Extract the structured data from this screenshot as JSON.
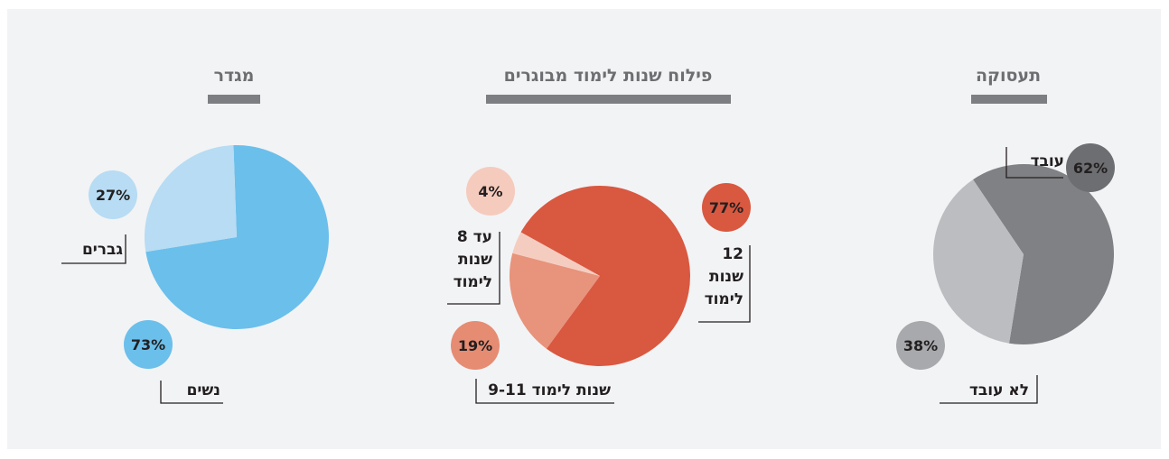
{
  "chart_data": [
    {
      "type": "pie",
      "title": "תעסוקה",
      "slices": [
        {
          "label": "עובד",
          "value": 62,
          "value_label": "62%",
          "color": "#808184",
          "badge_color": "#6d6e71"
        },
        {
          "label": "לא עובד",
          "value": 38,
          "value_label": "38%",
          "color": "#bcbdc0",
          "badge_color": "#a7a9ac"
        }
      ]
    },
    {
      "type": "pie",
      "title": "פילוח שנות לימוד מבוגרים",
      "slices": [
        {
          "label": "12 שנות לימוד",
          "label_lines": [
            "12",
            "שנות",
            "לימוד"
          ],
          "value": 77,
          "value_label": "77%",
          "color": "#d95840",
          "badge_color": "#d95840"
        },
        {
          "label": "9-11 שנות לימוד",
          "value": 19,
          "value_label": "19%",
          "color": "#e8937b",
          "badge_color": "#e58c73"
        },
        {
          "label": "עד 8 שנות לימוד",
          "label_lines": [
            "עד 8",
            "שנות",
            "לימוד"
          ],
          "value": 4,
          "value_label": "4%",
          "color": "#f5cdc0",
          "badge_color": "#f5cbbd"
        }
      ]
    },
    {
      "type": "pie",
      "title": "מגדר",
      "slices": [
        {
          "label": "נשים",
          "value": 73,
          "value_label": "73%",
          "color": "#6bbfeb",
          "badge_color": "#6bbfeb"
        },
        {
          "label": "גברים",
          "value": 27,
          "value_label": "27%",
          "color": "#b7dcf3",
          "badge_color": "#b7dcf3"
        }
      ]
    }
  ]
}
